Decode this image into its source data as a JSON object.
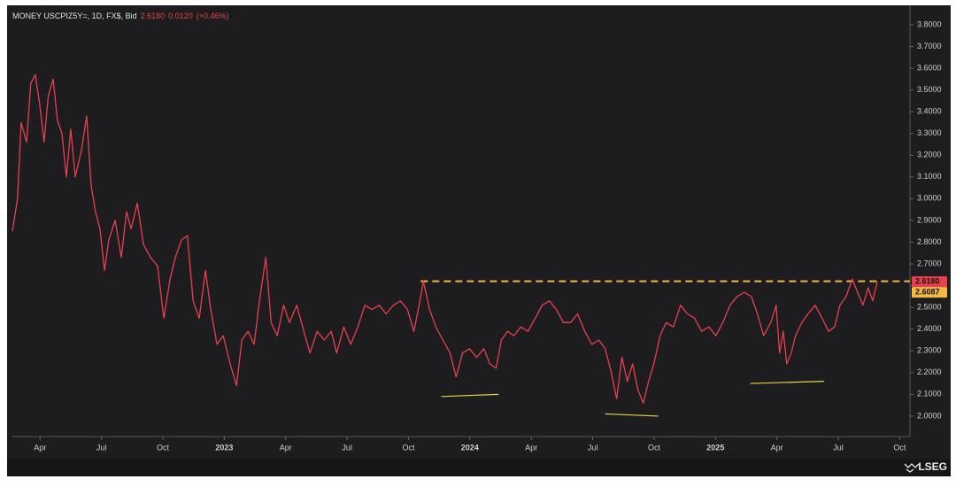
{
  "chart_data": {
    "type": "line",
    "title": "MONEY USCPIZ5Y=, 1D, FX$, Bid",
    "last": "2.6180",
    "change": "0.0120",
    "change_pct": "(+0.46%)",
    "brand": "LSEG",
    "x": [
      1.65,
      1.9,
      2.08,
      2.34,
      2.55,
      2.77,
      2.99,
      3.2,
      3.4,
      3.64,
      3.85,
      4.07,
      4.29,
      4.5,
      4.72,
      5.02,
      5.28,
      5.5,
      5.71,
      5.93,
      6.15,
      6.36,
      6.67,
      6.97,
      7.23,
      7.45,
      7.75,
      8.05,
      8.4,
      8.74,
      9.05,
      9.35,
      9.61,
      9.91,
      10.2,
      10.48,
      10.78,
      11.08,
      11.34,
      11.65,
      11.95,
      12.29,
      12.6,
      12.86,
      13.16,
      13.46,
      13.72,
      14.03,
      14.29,
      14.59,
      14.9,
      15.19,
      15.54,
      15.89,
      16.19,
      16.54,
      16.88,
      17.23,
      17.49,
      17.84,
      18.18,
      18.53,
      18.87,
      19.22,
      19.57,
      19.91,
      20.26,
      20.61,
      20.95,
      21.26,
      21.52,
      21.73,
      22.03,
      22.34,
      22.68,
      23.03,
      23.33,
      23.64,
      23.98,
      24.33,
      24.68,
      24.98,
      25.28,
      25.54,
      25.84,
      26.15,
      26.49,
      26.84,
      27.19,
      27.53,
      27.88,
      28.23,
      28.57,
      28.92,
      29.26,
      29.61,
      29.96,
      30.3,
      30.61,
      30.91,
      31.17,
      31.43,
      31.69,
      31.95,
      32.21,
      32.47,
      32.73,
      32.99,
      33.29,
      33.59,
      33.94,
      34.29,
      34.63,
      34.98,
      35.32,
      35.67,
      36.02,
      36.36,
      36.71,
      37.06,
      37.4,
      37.75,
      38.05,
      38.35,
      38.7,
      38.96,
      39.13,
      39.31,
      39.48,
      39.7,
      39.91,
      40.22,
      40.52,
      40.87,
      41.21,
      41.52,
      41.82,
      42.08,
      42.38,
      42.68,
      42.94,
      43.2,
      43.46,
      43.68,
      43.9
    ],
    "series": [
      {
        "name": "USCPIZ5Y=",
        "color": "#e8404f",
        "values": [
          2.85,
          3.0,
          3.35,
          3.26,
          3.53,
          3.57,
          3.43,
          3.26,
          3.47,
          3.55,
          3.36,
          3.3,
          3.1,
          3.32,
          3.1,
          3.22,
          3.38,
          3.06,
          2.94,
          2.86,
          2.67,
          2.81,
          2.9,
          2.73,
          2.94,
          2.86,
          2.98,
          2.79,
          2.73,
          2.69,
          2.45,
          2.63,
          2.73,
          2.81,
          2.83,
          2.53,
          2.45,
          2.67,
          2.49,
          2.33,
          2.37,
          2.24,
          2.14,
          2.35,
          2.39,
          2.33,
          2.53,
          2.73,
          2.43,
          2.37,
          2.51,
          2.43,
          2.51,
          2.39,
          2.29,
          2.39,
          2.35,
          2.39,
          2.29,
          2.41,
          2.33,
          2.41,
          2.51,
          2.49,
          2.51,
          2.47,
          2.51,
          2.53,
          2.49,
          2.39,
          2.51,
          2.62,
          2.49,
          2.41,
          2.35,
          2.29,
          2.18,
          2.29,
          2.31,
          2.27,
          2.31,
          2.24,
          2.22,
          2.35,
          2.39,
          2.37,
          2.41,
          2.39,
          2.45,
          2.51,
          2.53,
          2.49,
          2.43,
          2.43,
          2.47,
          2.39,
          2.33,
          2.35,
          2.31,
          2.2,
          2.08,
          2.27,
          2.16,
          2.24,
          2.12,
          2.06,
          2.16,
          2.24,
          2.37,
          2.43,
          2.41,
          2.51,
          2.47,
          2.45,
          2.39,
          2.41,
          2.37,
          2.43,
          2.51,
          2.55,
          2.57,
          2.55,
          2.47,
          2.37,
          2.43,
          2.51,
          2.29,
          2.39,
          2.24,
          2.29,
          2.37,
          2.43,
          2.47,
          2.51,
          2.45,
          2.39,
          2.41,
          2.51,
          2.55,
          2.63,
          2.57,
          2.51,
          2.59,
          2.53,
          2.618
        ]
      }
    ],
    "xlim": [
      1.65,
      45.5
    ],
    "xticks": [
      {
        "value": 3,
        "label": "Apr"
      },
      {
        "value": 6,
        "label": "Jul"
      },
      {
        "value": 9,
        "label": "Oct"
      },
      {
        "value": 12,
        "label": "2023"
      },
      {
        "value": 15,
        "label": "Apr"
      },
      {
        "value": 18,
        "label": "Jul"
      },
      {
        "value": 21,
        "label": "Oct"
      },
      {
        "value": 24,
        "label": "2024"
      },
      {
        "value": 27,
        "label": "Apr"
      },
      {
        "value": 30,
        "label": "Jul"
      },
      {
        "value": 33,
        "label": "Oct"
      },
      {
        "value": 36,
        "label": "2025"
      },
      {
        "value": 39,
        "label": "Apr"
      },
      {
        "value": 42,
        "label": "Jul"
      },
      {
        "value": 45,
        "label": "Oct"
      }
    ],
    "ylim": [
      1.906,
      3.873
    ],
    "yticks": [
      {
        "value": 2.0,
        "label": "2.0000"
      },
      {
        "value": 2.1,
        "label": "2.1000"
      },
      {
        "value": 2.2,
        "label": "2.2000"
      },
      {
        "value": 2.3,
        "label": "2.3000"
      },
      {
        "value": 2.4,
        "label": "2.4000"
      },
      {
        "value": 2.5,
        "label": "2.5000"
      },
      {
        "value": 2.6,
        "label": "2.6000"
      },
      {
        "value": 2.7,
        "label": "2.7000"
      },
      {
        "value": 2.8,
        "label": "2.8000"
      },
      {
        "value": 2.9,
        "label": "2.9000"
      },
      {
        "value": 3.0,
        "label": "3.0000"
      },
      {
        "value": 3.1,
        "label": "3.1000"
      },
      {
        "value": 3.2,
        "label": "3.2000"
      },
      {
        "value": 3.3,
        "label": "3.3000"
      },
      {
        "value": 3.4,
        "label": "3.4000"
      },
      {
        "value": 3.5,
        "label": "3.5000"
      },
      {
        "value": 3.6,
        "label": "3.6000"
      },
      {
        "value": 3.7,
        "label": "3.7000"
      },
      {
        "value": 3.8,
        "label": "3.8000"
      }
    ],
    "price_tags": [
      {
        "value": 2.618,
        "label": "2.6180",
        "color": "#e8404f"
      },
      {
        "value": 2.6087,
        "label": "2.6087",
        "color": "#f5b843"
      }
    ],
    "resistance": {
      "value": 2.62,
      "x_start": 21.6,
      "color": "#f5b843"
    },
    "trendlines": [
      {
        "x": [
          22.6,
          25.4
        ],
        "y": [
          2.09,
          2.1
        ]
      },
      {
        "x": [
          30.6,
          33.2
        ],
        "y": [
          2.01,
          2.0
        ]
      },
      {
        "x": [
          37.7,
          41.3
        ],
        "y": [
          2.15,
          2.16
        ]
      }
    ],
    "trendline_color": "#e6d34a"
  }
}
